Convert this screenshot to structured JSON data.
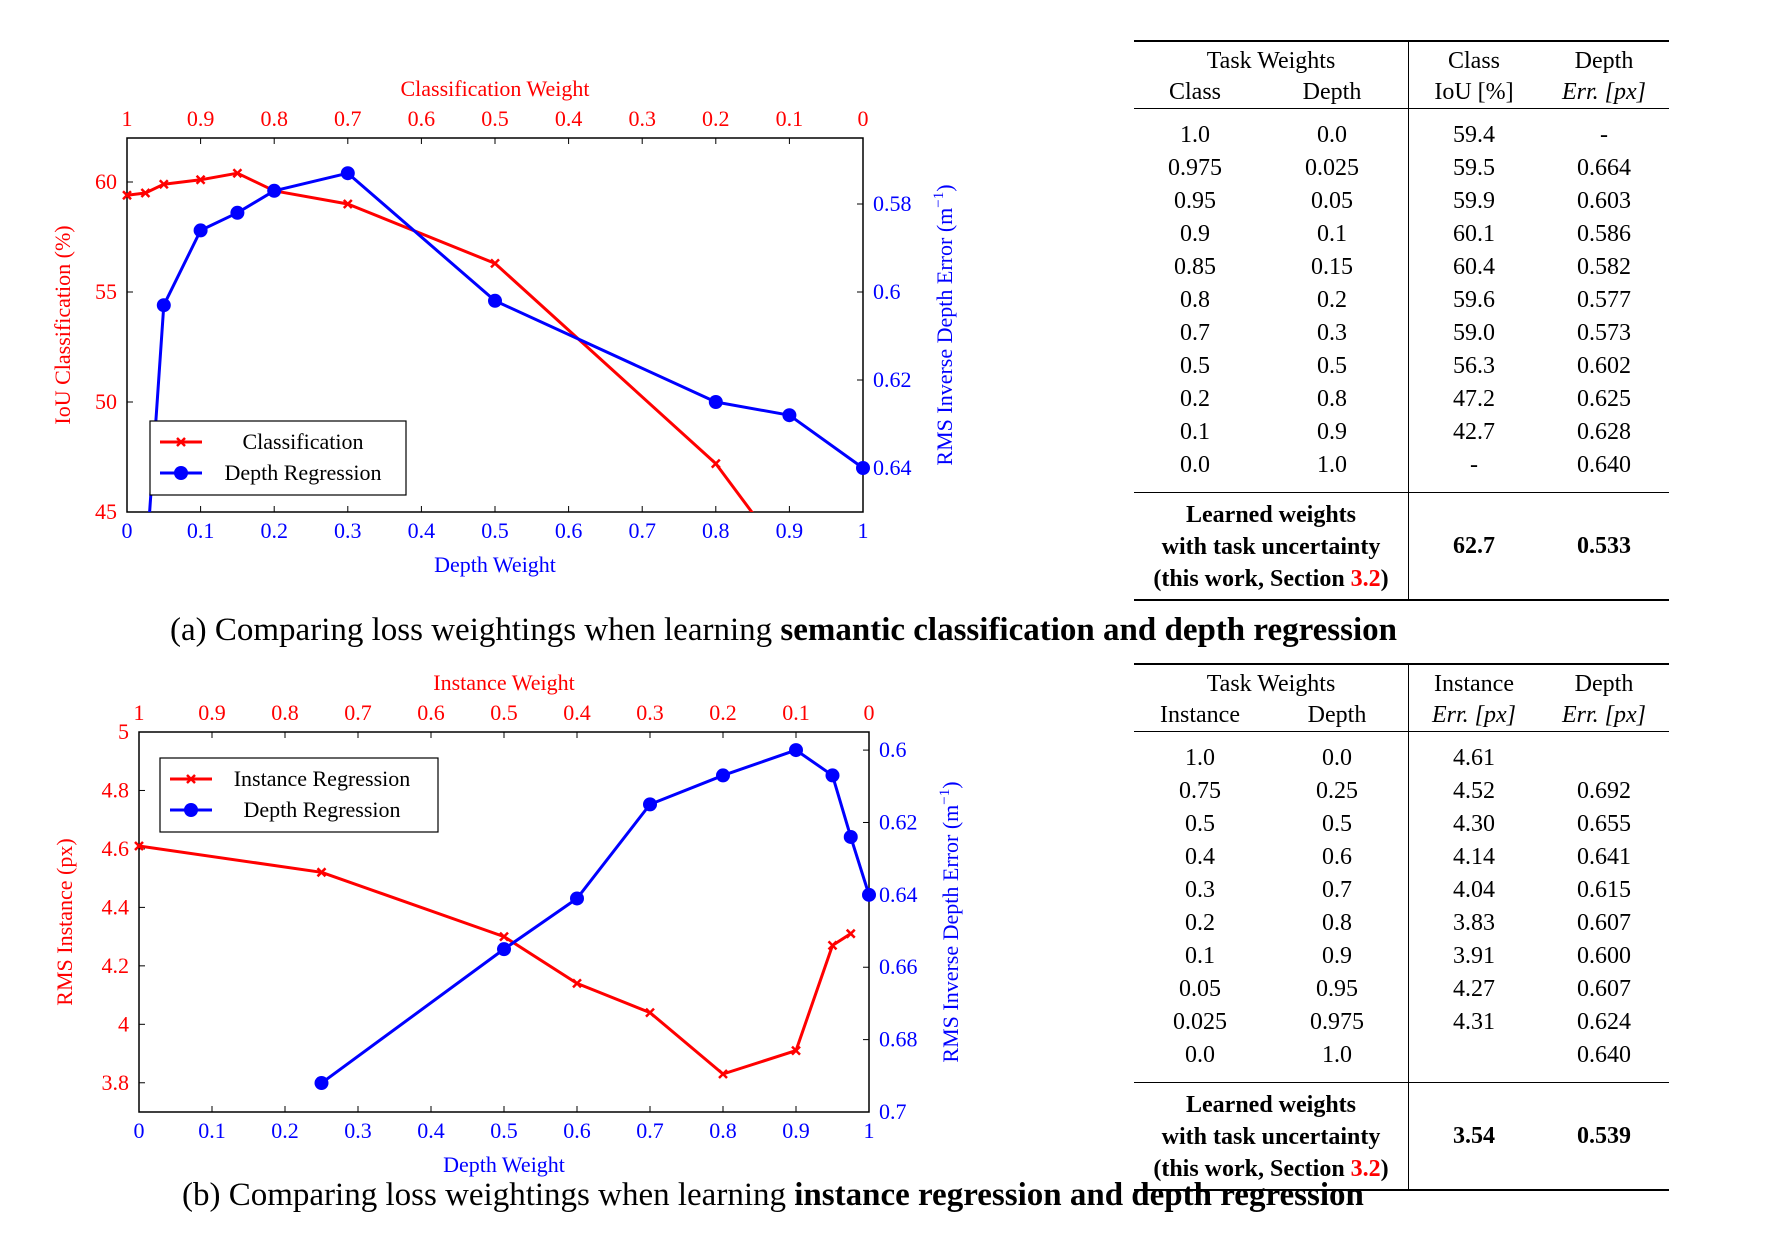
{
  "colors": {
    "red": "#ff0000",
    "blue": "#0000ff",
    "black": "#000000"
  },
  "chart_data": [
    {
      "type": "line",
      "top_axis_label": "Classification Weight",
      "xlabel": "Depth Weight",
      "ylabel_left": "IoU Classification (%)",
      "ylabel_right": "RMS Inverse Depth Error (m",
      "ylabel_right_sup": "−1",
      "ylabel_right_end": ")",
      "xlim": [
        0,
        1
      ],
      "top_xlim": [
        1,
        0
      ],
      "ylim_left": [
        45,
        62
      ],
      "ylim_right": [
        0.565,
        0.65
      ],
      "x_ticks": [
        "0",
        "0.1",
        "0.2",
        "0.3",
        "0.4",
        "0.5",
        "0.6",
        "0.7",
        "0.8",
        "0.9",
        "1"
      ],
      "top_ticks": [
        "1",
        "0.9",
        "0.8",
        "0.7",
        "0.6",
        "0.5",
        "0.4",
        "0.3",
        "0.2",
        "0.1",
        "0"
      ],
      "left_ticks": [
        "45",
        "50",
        "55",
        "60"
      ],
      "right_ticks": [
        "0.58",
        "0.6",
        "0.62",
        "0.64"
      ],
      "legend": {
        "placement": "bottom-left"
      },
      "series": [
        {
          "name": "Classification",
          "axis": "left",
          "marker": "x",
          "x": [
            0,
            0.025,
            0.05,
            0.1,
            0.15,
            0.2,
            0.3,
            0.5,
            0.8,
            0.9
          ],
          "y": [
            59.4,
            59.5,
            59.9,
            60.1,
            60.4,
            59.6,
            59.0,
            56.3,
            47.2,
            42.7
          ]
        },
        {
          "name": "Depth Regression",
          "axis": "right",
          "marker": "circle",
          "x": [
            0.025,
            0.05,
            0.1,
            0.15,
            0.2,
            0.3,
            0.5,
            0.8,
            0.9,
            1.0
          ],
          "y": [
            0.664,
            0.603,
            0.586,
            0.582,
            0.577,
            0.573,
            0.602,
            0.625,
            0.628,
            0.64
          ]
        }
      ]
    },
    {
      "type": "line",
      "top_axis_label": "Instance Weight",
      "xlabel": "Depth Weight",
      "ylabel_left": "RMS Instance (px)",
      "ylabel_right": "RMS Inverse Depth Error (m",
      "ylabel_right_sup": "−1",
      "ylabel_right_end": ")",
      "xlim": [
        0,
        1
      ],
      "top_xlim": [
        1,
        0
      ],
      "ylim_left": [
        3.7,
        5.0
      ],
      "ylim_right": [
        0.595,
        0.7
      ],
      "x_ticks": [
        "0",
        "0.1",
        "0.2",
        "0.3",
        "0.4",
        "0.5",
        "0.6",
        "0.7",
        "0.8",
        "0.9",
        "1"
      ],
      "top_ticks": [
        "1",
        "0.9",
        "0.8",
        "0.7",
        "0.6",
        "0.5",
        "0.4",
        "0.3",
        "0.2",
        "0.1",
        "0"
      ],
      "left_ticks": [
        "3.8",
        "4",
        "4.2",
        "4.4",
        "4.6",
        "4.8",
        "5"
      ],
      "right_ticks": [
        "0.6",
        "0.62",
        "0.64",
        "0.66",
        "0.68",
        "0.7"
      ],
      "legend": {
        "placement": "top-left"
      },
      "series": [
        {
          "name": "Instance Regression",
          "axis": "left",
          "marker": "x",
          "x": [
            0,
            0.25,
            0.5,
            0.6,
            0.7,
            0.8,
            0.9,
            0.95,
            0.975
          ],
          "y": [
            4.61,
            4.52,
            4.3,
            4.14,
            4.04,
            3.83,
            3.91,
            4.27,
            4.31
          ]
        },
        {
          "name": "Depth Regression",
          "axis": "right",
          "marker": "circle",
          "x": [
            0.25,
            0.5,
            0.6,
            0.7,
            0.8,
            0.9,
            0.95,
            0.975,
            1.0
          ],
          "y": [
            0.692,
            0.655,
            0.641,
            0.615,
            0.607,
            0.6,
            0.607,
            0.624,
            0.64
          ]
        }
      ]
    }
  ],
  "tables": {
    "a": {
      "group_header": "Task Weights",
      "col1_header": "Class",
      "col2_header": "Depth",
      "col3_header_1": "Class",
      "col3_header_2": "IoU [%]",
      "col4_header_1": "Depth",
      "col4_header_2": "Err. [px]",
      "rows": [
        [
          "1.0",
          "0.0",
          "59.4",
          "-"
        ],
        [
          "0.975",
          "0.025",
          "59.5",
          "0.664"
        ],
        [
          "0.95",
          "0.05",
          "59.9",
          "0.603"
        ],
        [
          "0.9",
          "0.1",
          "60.1",
          "0.586"
        ],
        [
          "0.85",
          "0.15",
          "60.4",
          "0.582"
        ],
        [
          "0.8",
          "0.2",
          "59.6",
          "0.577"
        ],
        [
          "0.7",
          "0.3",
          "59.0",
          "0.573"
        ],
        [
          "0.5",
          "0.5",
          "56.3",
          "0.602"
        ],
        [
          "0.2",
          "0.8",
          "47.2",
          "0.625"
        ],
        [
          "0.1",
          "0.9",
          "42.7",
          "0.628"
        ],
        [
          "0.0",
          "1.0",
          "-",
          "0.640"
        ]
      ],
      "learned_line1": "Learned weights",
      "learned_line2": "with task uncertainty",
      "learned_line3_pre": "(this work, Section ",
      "learned_line3_ref": "3.2",
      "learned_line3_post": ")",
      "learned_val1": "62.7",
      "learned_val2": "0.533"
    },
    "b": {
      "group_header": "Task Weights",
      "col1_header": "Instance",
      "col2_header": "Depth",
      "col3_header_1": "Instance",
      "col3_header_2": "Err. [px]",
      "col4_header_1": "Depth",
      "col4_header_2": "Err. [px]",
      "rows": [
        [
          "1.0",
          "0.0",
          "4.61",
          ""
        ],
        [
          "0.75",
          "0.25",
          "4.52",
          "0.692"
        ],
        [
          "0.5",
          "0.5",
          "4.30",
          "0.655"
        ],
        [
          "0.4",
          "0.6",
          "4.14",
          "0.641"
        ],
        [
          "0.3",
          "0.7",
          "4.04",
          "0.615"
        ],
        [
          "0.2",
          "0.8",
          "3.83",
          "0.607"
        ],
        [
          "0.1",
          "0.9",
          "3.91",
          "0.600"
        ],
        [
          "0.05",
          "0.95",
          "4.27",
          "0.607"
        ],
        [
          "0.025",
          "0.975",
          "4.31",
          "0.624"
        ],
        [
          "0.0",
          "1.0",
          "",
          "0.640"
        ]
      ],
      "learned_line1": "Learned weights",
      "learned_line2": "with task uncertainty",
      "learned_line3_pre": "(this work, Section ",
      "learned_line3_ref": "3.2",
      "learned_line3_post": ")",
      "learned_val1": "3.54",
      "learned_val2": "0.539"
    }
  },
  "captions": {
    "a_pre": "(a) Comparing loss weightings when learning ",
    "a_bold": "semantic classification and depth regression",
    "b_pre": "(b) Comparing loss weightings when learning ",
    "b_bold": "instance regression and depth regression"
  }
}
